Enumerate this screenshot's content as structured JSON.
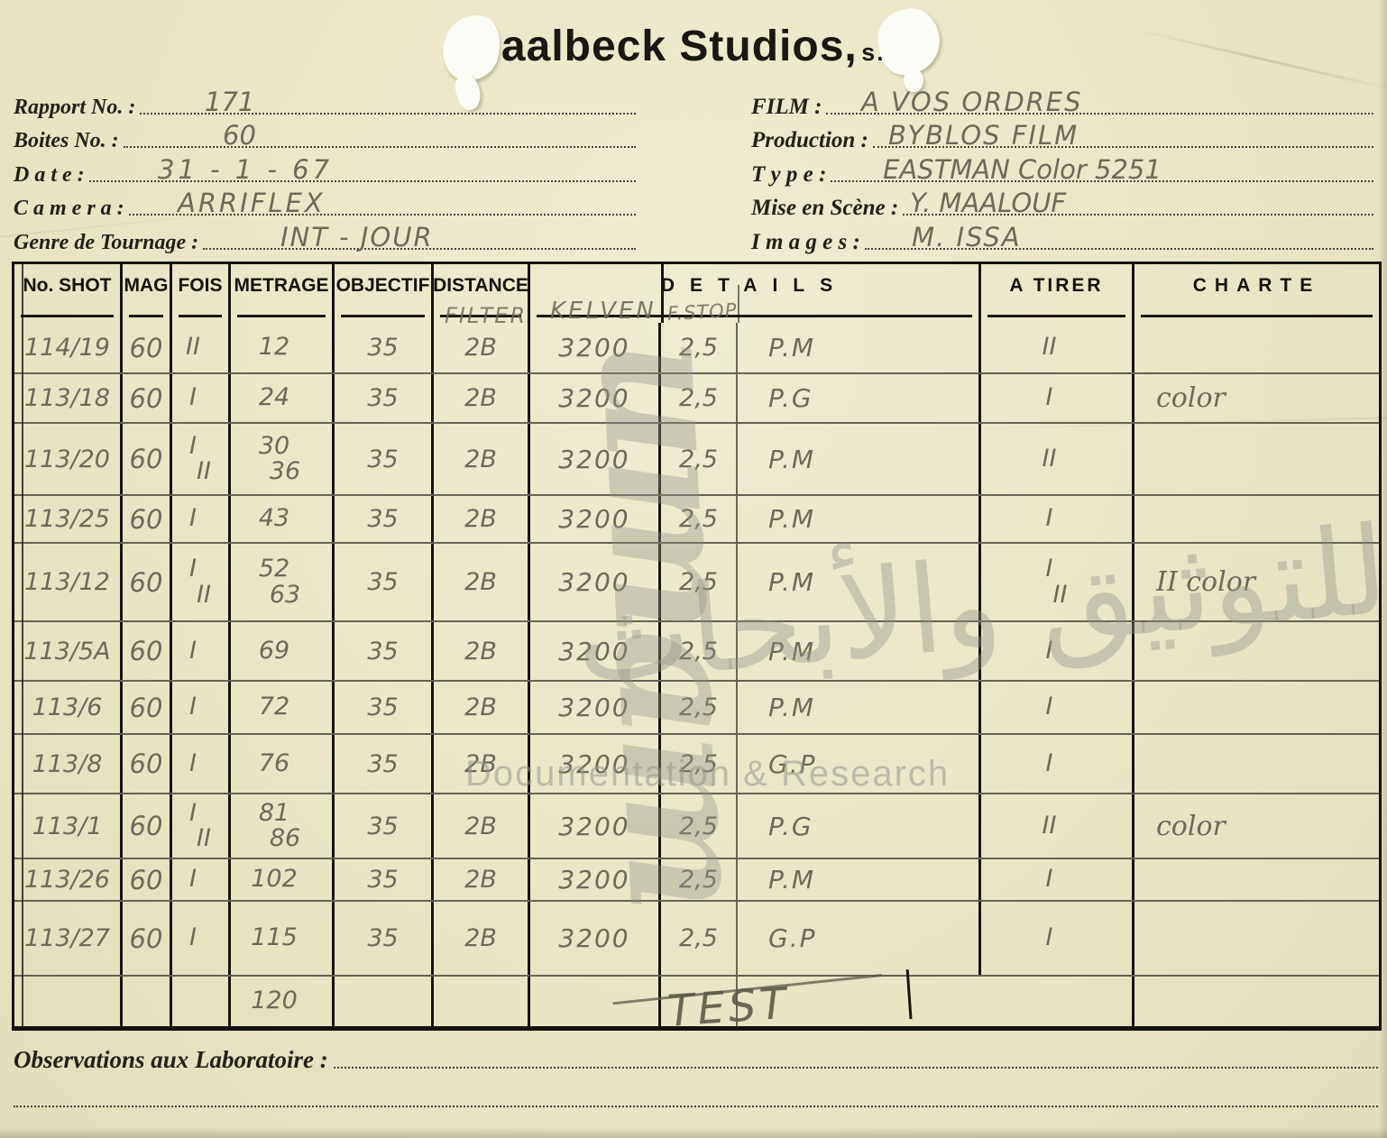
{
  "title": {
    "main": "Baalbeck Studios,",
    "suffix": "s. a."
  },
  "header_fields": {
    "left": [
      {
        "label": "Rapport No. :",
        "value": "171"
      },
      {
        "label": "Boites No. :",
        "value": "60"
      },
      {
        "label": "D a t e :",
        "value": "31 - 1 - 67"
      },
      {
        "label": "C a m e r a :",
        "value": "ARRIFLEX"
      },
      {
        "label": "Genre de Tournage :",
        "value": "INT - JOUR"
      }
    ],
    "right": [
      {
        "label": "FILM :",
        "value": "A VOS ORDRES"
      },
      {
        "label": "Production :",
        "value": "BYBLOS FILM"
      },
      {
        "label": "T y p e :",
        "value": "EASTMAN Color 5251"
      },
      {
        "label": "Mise en Scène :",
        "value": "Y. MAALOUF"
      },
      {
        "label": "I m a g e s :",
        "value": "M. ISSA"
      }
    ]
  },
  "table": {
    "headers": {
      "shot": "No. SHOT",
      "mag": "MAG",
      "fois": "FOIS",
      "metrage": "METRAGE",
      "objectif": "OBJECTIF",
      "distance": "DISTANCE",
      "details": "DETAILS",
      "a_tirer": "A TIRER",
      "charte": "CHARTE"
    },
    "handwritten_headers": {
      "filter": "FILTER",
      "kelven": "KELVEN",
      "fstop": "F.STOP"
    },
    "rows": [
      {
        "shot": "114/19",
        "mag": "60",
        "fois": [
          "II"
        ],
        "metrage": [
          "12"
        ],
        "objectif": "35",
        "distance": "2B",
        "kelven": "3200",
        "fstop": "2,5",
        "details": "P.M",
        "atirer": [
          "II"
        ],
        "charte": ""
      },
      {
        "shot": "113/18",
        "mag": "60",
        "fois": [
          "I"
        ],
        "metrage": [
          "24"
        ],
        "objectif": "35",
        "distance": "2B",
        "kelven": "3200",
        "fstop": "2,5",
        "details": "P.G",
        "atirer": [
          "I"
        ],
        "charte": "color"
      },
      {
        "shot": "113/20",
        "mag": "60",
        "fois": [
          "I",
          "II"
        ],
        "metrage": [
          "30",
          "36"
        ],
        "objectif": "35",
        "distance": "2B",
        "kelven": "3200",
        "fstop": "2,5",
        "details": "P.M",
        "atirer": [
          "II"
        ],
        "charte": ""
      },
      {
        "shot": "113/25",
        "mag": "60",
        "fois": [
          "I"
        ],
        "metrage": [
          "43"
        ],
        "objectif": "35",
        "distance": "2B",
        "kelven": "3200",
        "fstop": "2,5",
        "details": "P.M",
        "atirer": [
          "I"
        ],
        "charte": ""
      },
      {
        "shot": "113/12",
        "mag": "60",
        "fois": [
          "I",
          "II"
        ],
        "metrage": [
          "52",
          "63"
        ],
        "objectif": "35",
        "distance": "2B",
        "kelven": "3200",
        "fstop": "2,5",
        "details": "P.M",
        "atirer": [
          "I",
          "II"
        ],
        "charte": "II color"
      },
      {
        "shot": "113/5A",
        "mag": "60",
        "fois": [
          "I"
        ],
        "metrage": [
          "69"
        ],
        "objectif": "35",
        "distance": "2B",
        "kelven": "3200",
        "fstop": "2,5",
        "details": "P.M",
        "atirer": [
          "I"
        ],
        "charte": ""
      },
      {
        "shot": "113/6",
        "mag": "60",
        "fois": [
          "I"
        ],
        "metrage": [
          "72"
        ],
        "objectif": "35",
        "distance": "2B",
        "kelven": "3200",
        "fstop": "2,5",
        "details": "P.M",
        "atirer": [
          "I"
        ],
        "charte": ""
      },
      {
        "shot": "113/8",
        "mag": "60",
        "fois": [
          "I"
        ],
        "metrage": [
          "76"
        ],
        "objectif": "35",
        "distance": "2B",
        "kelven": "3200",
        "fstop": "2,5",
        "details": "G.P",
        "atirer": [
          "I"
        ],
        "charte": ""
      },
      {
        "shot": "113/1",
        "mag": "60",
        "fois": [
          "I",
          "II"
        ],
        "metrage": [
          "81",
          "86"
        ],
        "objectif": "35",
        "distance": "2B",
        "kelven": "3200",
        "fstop": "2,5",
        "details": "P.G",
        "atirer": [
          "II"
        ],
        "charte": "color"
      },
      {
        "shot": "113/26",
        "mag": "60",
        "fois": [
          "I"
        ],
        "metrage": [
          "102"
        ],
        "objectif": "35",
        "distance": "2B",
        "kelven": "3200",
        "fstop": "2,5",
        "details": "P.M",
        "atirer": [
          "I"
        ],
        "charte": ""
      },
      {
        "shot": "113/27",
        "mag": "60",
        "fois": [
          "I"
        ],
        "metrage": [
          "115"
        ],
        "objectif": "35",
        "distance": "2B",
        "kelven": "3200",
        "fstop": "2,5",
        "details": "G.P",
        "atirer": [
          "I"
        ],
        "charte": ""
      },
      {
        "variant": "test-row",
        "shot": "",
        "mag": "",
        "fois": [],
        "metrage": [
          "120"
        ],
        "objectif": "",
        "distance": "",
        "kelven": "",
        "fstop": "",
        "details": "TEST",
        "atirer": [],
        "charte": ""
      }
    ]
  },
  "footer": {
    "observations_label": "Observations aux Laboratoire  :"
  },
  "watermark": {
    "logo": "umam",
    "arabic": "للتوثيق والأبحاث",
    "latin": "Documentation & Research"
  },
  "colors": {
    "paper": "#eae7c5",
    "ink": "#201f1a",
    "pencil": "#6d6a5a",
    "watermark": "#a9a9a1"
  }
}
